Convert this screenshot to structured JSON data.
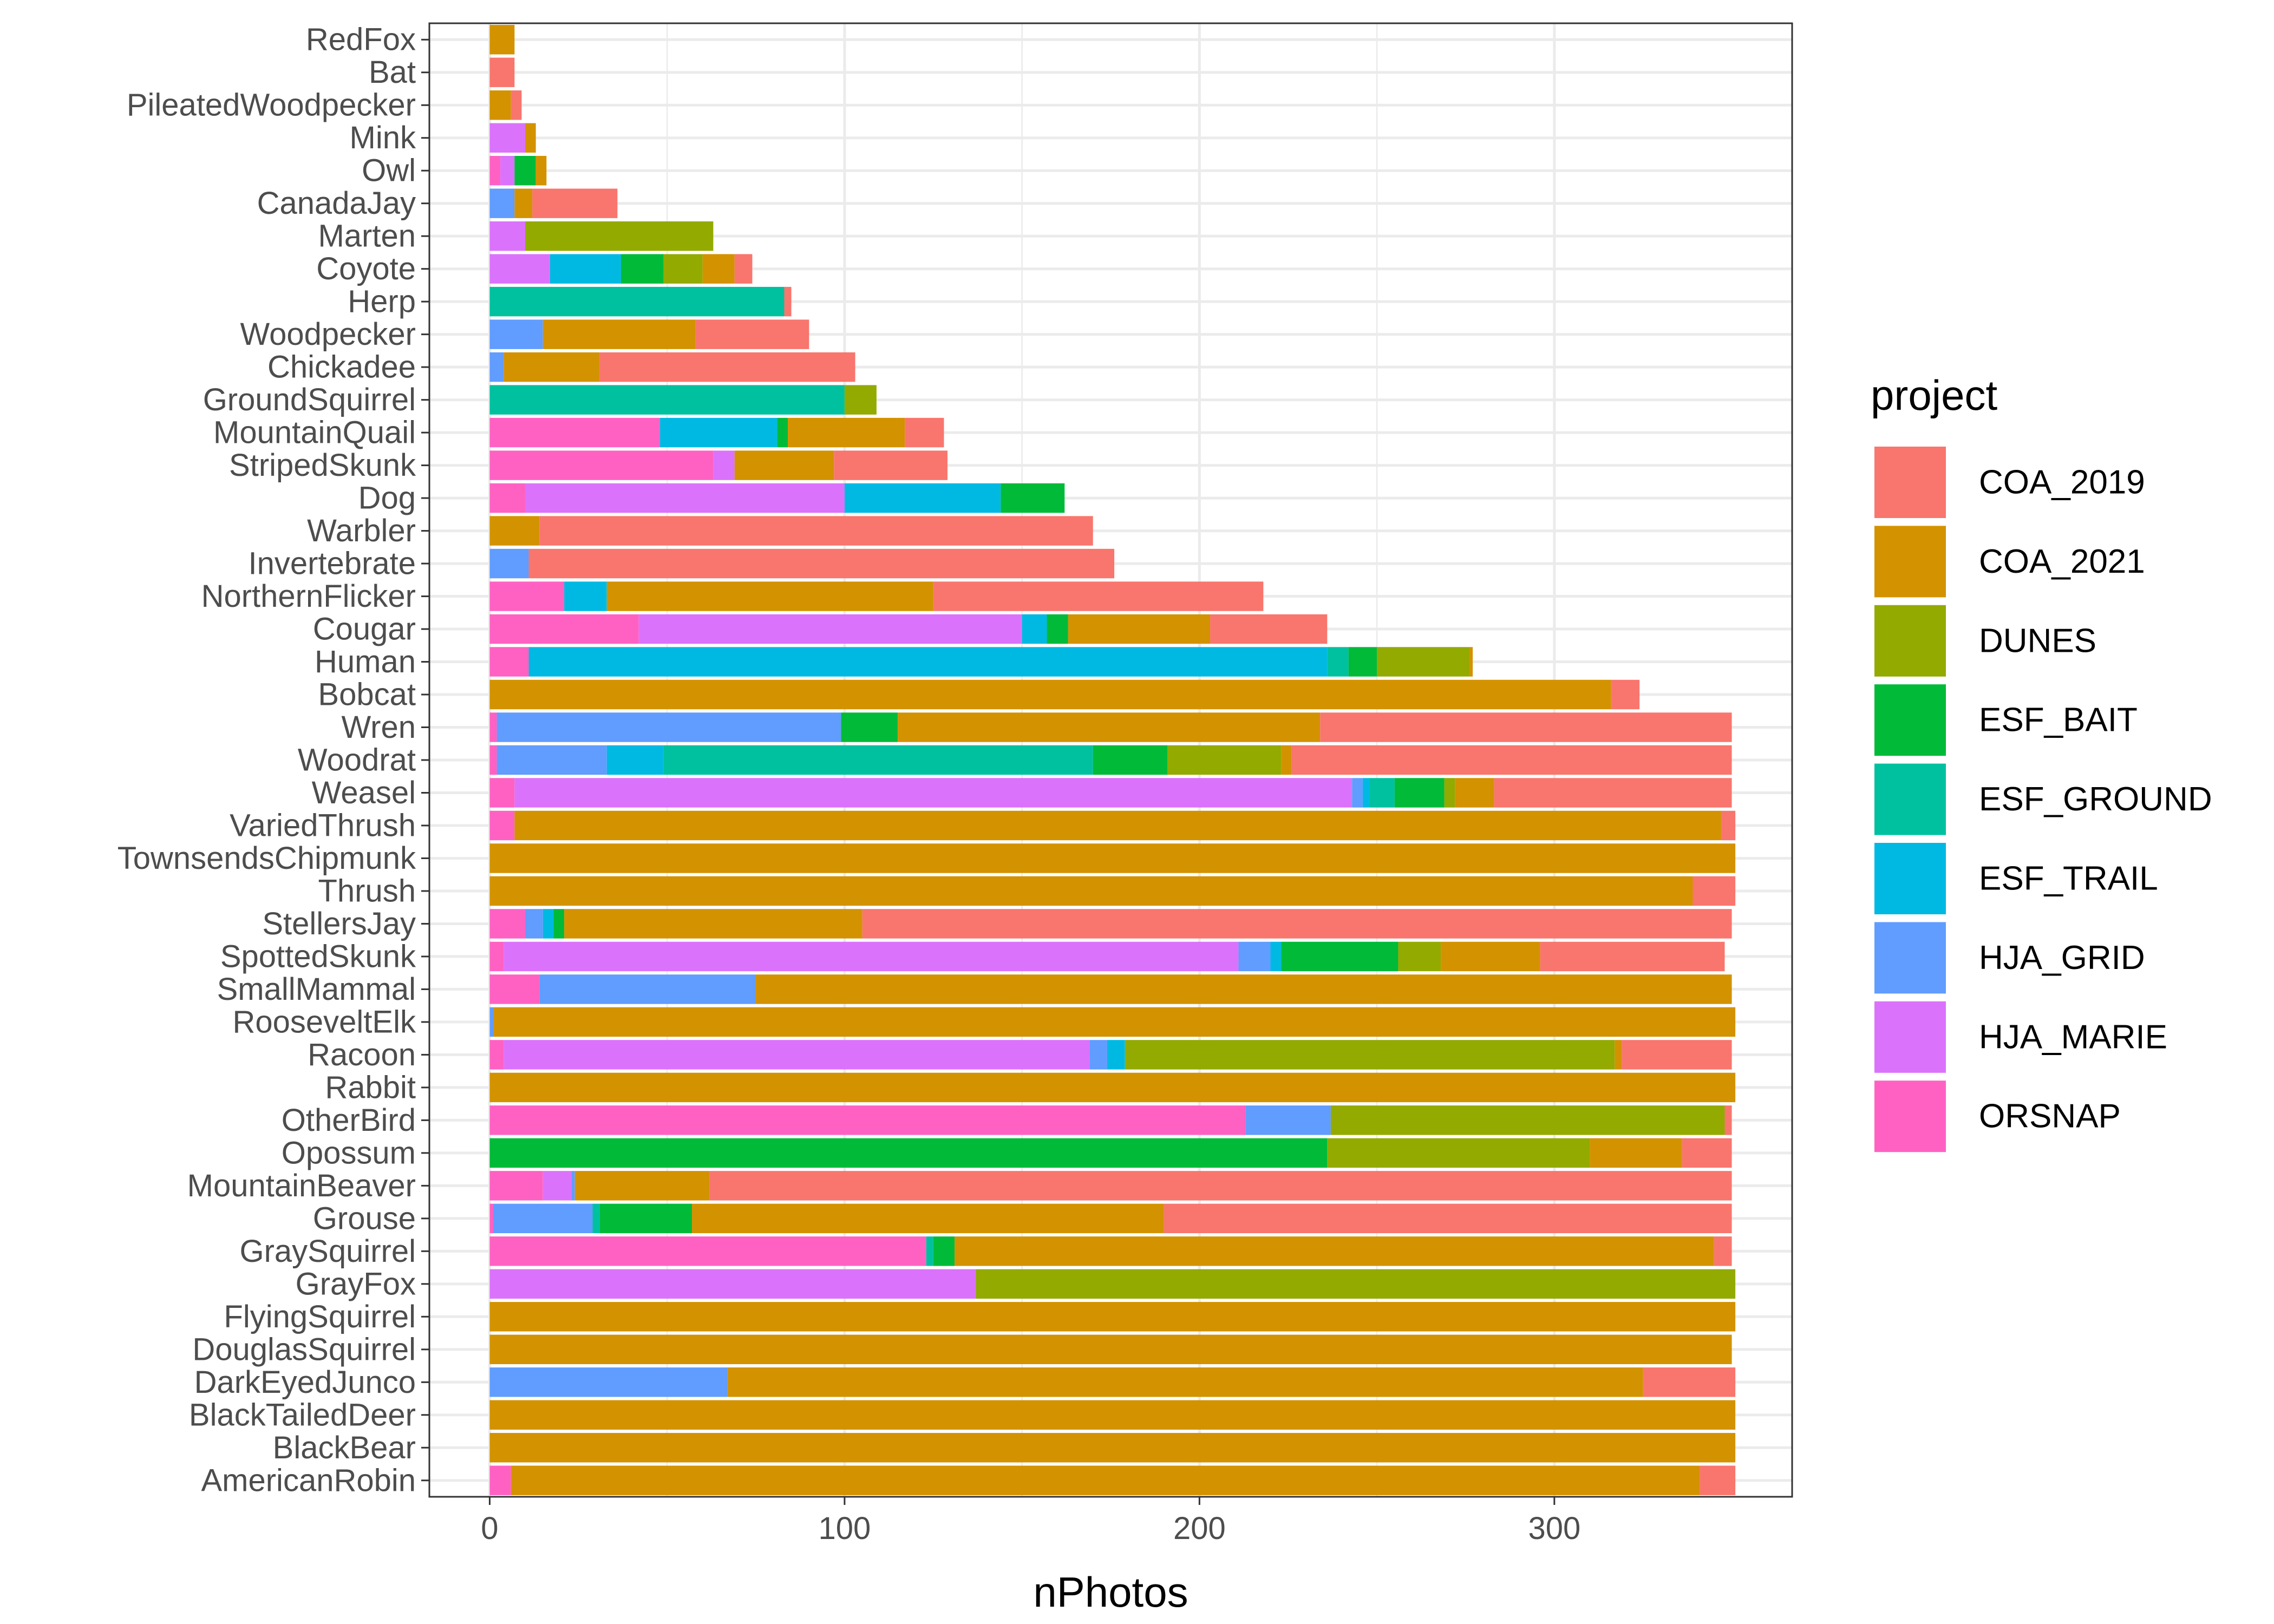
{
  "chart_data": {
    "type": "bar",
    "orientation": "horizontal",
    "stacked": true,
    "title": "",
    "xlabel": "nPhotos",
    "ylabel": "",
    "xlim": [
      -17,
      367
    ],
    "xticks": [
      0,
      100,
      200,
      300
    ],
    "grid": true,
    "legend_position": "right",
    "legend_title": "project",
    "categories": [
      "RedFox",
      "Bat",
      "PileatedWoodpecker",
      "Mink",
      "Owl",
      "CanadaJay",
      "Marten",
      "Coyote",
      "Herp",
      "Woodpecker",
      "Chickadee",
      "GroundSquirrel",
      "MountainQuail",
      "StripedSkunk",
      "Dog",
      "Warbler",
      "Invertebrate",
      "NorthernFlicker",
      "Cougar",
      "Human",
      "Bobcat",
      "Wren",
      "Woodrat",
      "Weasel",
      "VariedThrush",
      "TownsendsChipmunk",
      "Thrush",
      "StellersJay",
      "SpottedSkunk",
      "SmallMammal",
      "RooseveltElk",
      "Racoon",
      "Rabbit",
      "OtherBird",
      "Opossum",
      "MountainBeaver",
      "Grouse",
      "GraySquirrel",
      "GrayFox",
      "FlyingSquirrel",
      "DouglasSquirrel",
      "DarkEyedJunco",
      "BlackTailedDeer",
      "BlackBear",
      "AmericanRobin"
    ],
    "stack_order": [
      "ORSNAP",
      "HJA_MARIE",
      "HJA_GRID",
      "ESF_TRAIL",
      "ESF_GROUND",
      "ESF_BAIT",
      "DUNES",
      "COA_2021",
      "COA_2019"
    ],
    "series": [
      {
        "name": "COA_2019",
        "color": "#F8766D",
        "values": [
          0,
          7,
          3,
          0,
          0,
          24,
          0,
          5,
          2,
          32,
          72,
          0,
          11,
          32,
          0,
          156,
          165,
          93,
          33,
          0,
          8,
          116,
          124,
          67,
          4,
          0,
          12,
          245,
          52,
          0,
          0,
          31,
          0,
          2,
          14,
          288,
          160,
          5,
          0,
          0,
          0,
          26,
          0,
          0,
          10
        ]
      },
      {
        "name": "COA_2021",
        "color": "#D39200",
        "values": [
          7,
          0,
          6,
          3,
          3,
          5,
          0,
          9,
          0,
          43,
          27,
          0,
          33,
          28,
          0,
          14,
          0,
          92,
          40,
          1,
          316,
          119,
          3,
          11,
          340,
          351,
          339,
          84,
          28,
          275,
          350,
          2,
          351,
          0,
          26,
          38,
          133,
          214,
          0,
          351,
          350,
          258,
          351,
          351,
          335
        ]
      },
      {
        "name": "DUNES",
        "color": "#93AA00",
        "values": [
          0,
          0,
          0,
          0,
          0,
          0,
          53,
          11,
          0,
          0,
          0,
          9,
          0,
          0,
          0,
          0,
          0,
          0,
          0,
          26,
          0,
          0,
          32,
          3,
          0,
          0,
          0,
          0,
          12,
          0,
          0,
          138,
          0,
          111,
          74,
          0,
          0,
          0,
          214,
          0,
          0,
          0,
          0,
          0,
          0
        ]
      },
      {
        "name": "ESF_BAIT",
        "color": "#00BA38",
        "values": [
          0,
          0,
          0,
          0,
          6,
          0,
          0,
          12,
          0,
          0,
          0,
          0,
          3,
          0,
          18,
          0,
          0,
          0,
          6,
          8,
          0,
          16,
          21,
          14,
          0,
          0,
          0,
          3,
          33,
          0,
          0,
          0,
          0,
          0,
          236,
          0,
          26,
          6,
          0,
          0,
          0,
          0,
          0,
          0,
          0
        ]
      },
      {
        "name": "ESF_GROUND",
        "color": "#00C19F",
        "values": [
          0,
          0,
          0,
          0,
          0,
          0,
          0,
          0,
          83,
          0,
          0,
          100,
          0,
          0,
          0,
          0,
          0,
          0,
          0,
          6,
          0,
          0,
          121,
          7,
          0,
          0,
          0,
          0,
          0,
          0,
          0,
          0,
          0,
          0,
          0,
          0,
          2,
          2,
          0,
          0,
          0,
          0,
          0,
          0,
          0
        ]
      },
      {
        "name": "ESF_TRAIL",
        "color": "#00B9E3",
        "values": [
          0,
          0,
          0,
          0,
          0,
          0,
          0,
          20,
          0,
          0,
          0,
          0,
          33,
          0,
          44,
          0,
          0,
          12,
          7,
          225,
          0,
          0,
          16,
          2,
          0,
          0,
          0,
          3,
          3,
          0,
          0,
          5,
          0,
          0,
          0,
          0,
          0,
          0,
          0,
          0,
          0,
          0,
          0,
          0,
          0
        ]
      },
      {
        "name": "HJA_GRID",
        "color": "#619CFF",
        "values": [
          0,
          0,
          0,
          0,
          0,
          7,
          0,
          0,
          0,
          15,
          4,
          0,
          0,
          0,
          0,
          0,
          11,
          0,
          0,
          0,
          0,
          97,
          31,
          3,
          0,
          0,
          0,
          5,
          9,
          61,
          1,
          5,
          0,
          24,
          0,
          1,
          28,
          0,
          0,
          0,
          0,
          67,
          0,
          0,
          0
        ]
      },
      {
        "name": "HJA_MARIE",
        "color": "#DB72FB",
        "values": [
          0,
          0,
          0,
          10,
          4,
          0,
          10,
          17,
          0,
          0,
          0,
          0,
          0,
          6,
          90,
          0,
          0,
          0,
          108,
          0,
          0,
          0,
          0,
          236,
          0,
          0,
          0,
          0,
          207,
          0,
          0,
          165,
          0,
          0,
          0,
          8,
          0,
          0,
          137,
          0,
          0,
          0,
          0,
          0,
          0
        ]
      },
      {
        "name": "ORSNAP",
        "color": "#FF61C3",
        "values": [
          0,
          0,
          0,
          0,
          3,
          0,
          0,
          0,
          0,
          0,
          0,
          0,
          48,
          63,
          10,
          0,
          0,
          21,
          42,
          11,
          0,
          2,
          2,
          7,
          7,
          0,
          0,
          10,
          4,
          14,
          0,
          4,
          0,
          213,
          0,
          15,
          1,
          123,
          0,
          0,
          0,
          0,
          0,
          0,
          6
        ]
      }
    ]
  }
}
